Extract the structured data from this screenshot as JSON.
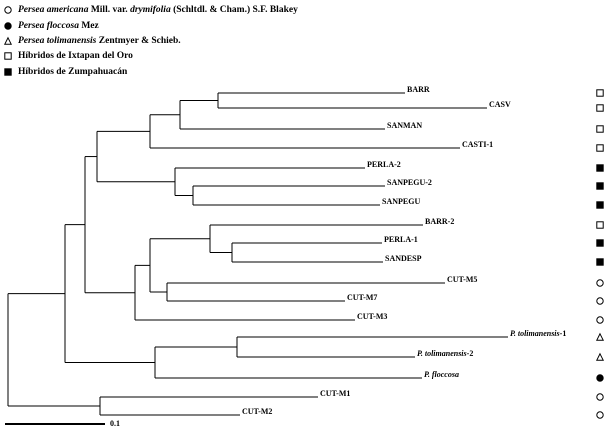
{
  "legend": [
    {
      "symbol": "open-circle",
      "parts": [
        {
          "text": "Persea americana",
          "italic": true
        },
        {
          "text": " Mill. var. ",
          "italic": false
        },
        {
          "text": "drymifolia",
          "italic": true
        },
        {
          "text": " (Schltdl. & Cham.) S.F. Blakey",
          "italic": false
        }
      ]
    },
    {
      "symbol": "filled-circle",
      "parts": [
        {
          "text": "Persea floccosa",
          "italic": true
        },
        {
          "text": " Mez",
          "italic": false
        }
      ]
    },
    {
      "symbol": "open-triangle",
      "parts": [
        {
          "text": "Persea tolimanensis",
          "italic": true
        },
        {
          "text": " Zentmyer & Schieb.",
          "italic": false
        }
      ]
    },
    {
      "symbol": "open-square",
      "parts": [
        {
          "text": "Híbridos de Ixtapan del Oro",
          "italic": false
        }
      ]
    },
    {
      "symbol": "filled-square",
      "parts": [
        {
          "text": "Híbridos de Zumpahuacán",
          "italic": false
        }
      ]
    }
  ],
  "leaves": [
    {
      "symbol": "open-square",
      "parts": [
        {
          "text": "BARR",
          "italic": false
        }
      ]
    },
    {
      "symbol": "open-square",
      "parts": [
        {
          "text": "CASV",
          "italic": false
        }
      ]
    },
    {
      "symbol": "open-square",
      "parts": [
        {
          "text": "SANMAN",
          "italic": false
        }
      ]
    },
    {
      "symbol": "open-square",
      "parts": [
        {
          "text": "CASTI-1",
          "italic": false
        }
      ]
    },
    {
      "symbol": "filled-square",
      "parts": [
        {
          "text": "PERLA-2",
          "italic": false
        }
      ]
    },
    {
      "symbol": "filled-square",
      "parts": [
        {
          "text": "SANPEGU-2",
          "italic": false
        }
      ]
    },
    {
      "symbol": "filled-square",
      "parts": [
        {
          "text": "SANPEGU",
          "italic": false
        }
      ]
    },
    {
      "symbol": "open-square",
      "parts": [
        {
          "text": "BARR-2",
          "italic": false
        }
      ]
    },
    {
      "symbol": "filled-square",
      "parts": [
        {
          "text": "PERLA-1",
          "italic": false
        }
      ]
    },
    {
      "symbol": "filled-square",
      "parts": [
        {
          "text": "SANDESP",
          "italic": false
        }
      ]
    },
    {
      "symbol": "open-circle",
      "parts": [
        {
          "text": "CUT-M5",
          "italic": false
        }
      ]
    },
    {
      "symbol": "open-circle",
      "parts": [
        {
          "text": "CUT-M7",
          "italic": false
        }
      ]
    },
    {
      "symbol": "open-circle",
      "parts": [
        {
          "text": "CUT-M3",
          "italic": false
        }
      ]
    },
    {
      "symbol": "open-triangle",
      "parts": [
        {
          "text": "P. tolimanensis",
          "italic": true
        },
        {
          "text": "-1",
          "italic": false
        }
      ]
    },
    {
      "symbol": "open-triangle",
      "parts": [
        {
          "text": "P. tolimanensis",
          "italic": true
        },
        {
          "text": "-2",
          "italic": false
        }
      ]
    },
    {
      "symbol": "filled-circle",
      "parts": [
        {
          "text": "P. floccosa",
          "italic": true
        }
      ]
    },
    {
      "symbol": "open-circle",
      "parts": [
        {
          "text": "CUT-M1",
          "italic": false
        }
      ]
    },
    {
      "symbol": "open-circle",
      "parts": [
        {
          "text": "CUT-M2",
          "italic": false
        }
      ]
    }
  ],
  "scale_bar": "0.1"
}
